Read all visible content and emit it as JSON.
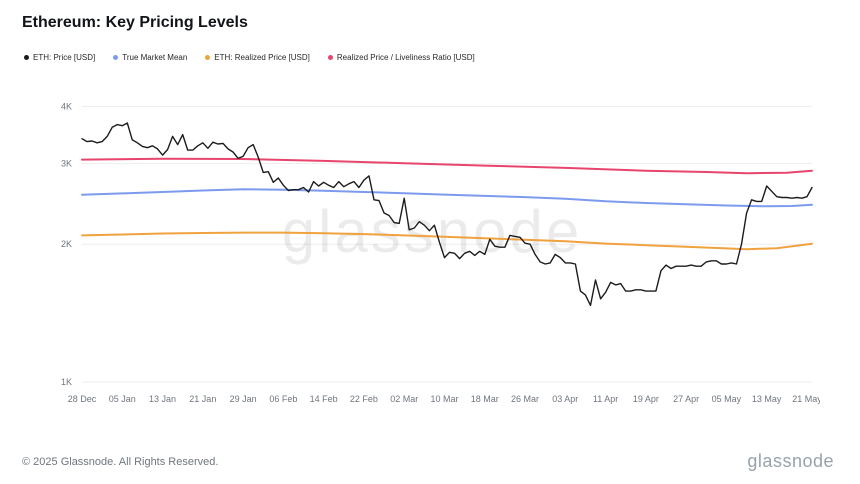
{
  "header": {
    "title": "Ethereum: Key Pricing Levels"
  },
  "legend": {
    "items": [
      {
        "label": "ETH: Price [USD]",
        "color": "#1c1c1c"
      },
      {
        "label": "True Market Mean",
        "color": "#7c9bee"
      },
      {
        "label": "ETH: Realized Price [USD]",
        "color": "#f0a23e"
      },
      {
        "label": "Realized Price / Liveliness Ratio [USD]",
        "color": "#e8456d"
      }
    ]
  },
  "chart_data": {
    "type": "line",
    "title": "Ethereum: Key Pricing Levels",
    "y_scale": "log",
    "x_unit": "days since 28 Dec",
    "x_range": [
      0,
      145
    ],
    "y_range": [
      1000,
      4300
    ],
    "grid": "horizontal-only",
    "legend_position": "top-left",
    "watermark": "glassnode",
    "y_ticks": [
      {
        "label": "4K",
        "value": 4000
      },
      {
        "label": "3K",
        "value": 3000
      },
      {
        "label": "2K",
        "value": 2000
      },
      {
        "label": "1K",
        "value": 1000
      }
    ],
    "x_tick_days": [
      0,
      8,
      16,
      24,
      32,
      40,
      48,
      56,
      64,
      72,
      80,
      88,
      96,
      104,
      112,
      120,
      128,
      136,
      144
    ],
    "x_tick_labels": [
      "28 Dec",
      "05 Jan",
      "13 Jan",
      "21 Jan",
      "29 Jan",
      "06 Feb",
      "14 Feb",
      "22 Feb",
      "02 Mar",
      "10 Mar",
      "18 Mar",
      "26 Mar",
      "03 Apr",
      "11 Apr",
      "19 Apr",
      "27 Apr",
      "05 May",
      "13 May",
      "21 May"
    ],
    "series": [
      {
        "name": "ETH: Price [USD]",
        "color": "#1c1c1c",
        "width": 1.4,
        "values": [
          3400,
          3350,
          3360,
          3330,
          3350,
          3440,
          3600,
          3650,
          3630,
          3680,
          3380,
          3330,
          3270,
          3250,
          3280,
          3230,
          3130,
          3220,
          3440,
          3300,
          3470,
          3210,
          3210,
          3280,
          3330,
          3240,
          3340,
          3310,
          3320,
          3230,
          3180,
          3080,
          3110,
          3250,
          3300,
          3100,
          2870,
          2880,
          2730,
          2790,
          2690,
          2620,
          2630,
          2630,
          2660,
          2600,
          2740,
          2680,
          2730,
          2690,
          2660,
          2740,
          2670,
          2710,
          2740,
          2660,
          2760,
          2820,
          2500,
          2490,
          2340,
          2310,
          2230,
          2220,
          2520,
          2150,
          2170,
          2240,
          2200,
          2140,
          2200,
          2020,
          1870,
          1920,
          1910,
          1860,
          1910,
          1930,
          1890,
          1930,
          1900,
          2050,
          1980,
          1970,
          1970,
          2090,
          2080,
          2070,
          2010,
          2000,
          1900,
          1830,
          1810,
          1820,
          1900,
          1870,
          1820,
          1820,
          1810,
          1580,
          1550,
          1470,
          1670,
          1520,
          1570,
          1650,
          1630,
          1640,
          1580,
          1580,
          1590,
          1590,
          1580,
          1580,
          1580,
          1750,
          1800,
          1770,
          1790,
          1790,
          1790,
          1800,
          1790,
          1790,
          1830,
          1840,
          1840,
          1810,
          1810,
          1820,
          1810,
          2000,
          2340,
          2500,
          2480,
          2480,
          2680,
          2610,
          2540,
          2530,
          2530,
          2520,
          2530,
          2520,
          2540,
          2660
        ]
      },
      {
        "name": "True Market Mean",
        "color": "#7c9bee",
        "width": 2,
        "points": [
          [
            0,
            2565
          ],
          [
            8,
            2582
          ],
          [
            16,
            2600
          ],
          [
            24,
            2620
          ],
          [
            32,
            2636
          ],
          [
            40,
            2630
          ],
          [
            48,
            2616
          ],
          [
            56,
            2600
          ],
          [
            64,
            2585
          ],
          [
            72,
            2566
          ],
          [
            80,
            2550
          ],
          [
            88,
            2534
          ],
          [
            96,
            2514
          ],
          [
            104,
            2482
          ],
          [
            112,
            2460
          ],
          [
            120,
            2445
          ],
          [
            128,
            2430
          ],
          [
            136,
            2420
          ],
          [
            141,
            2424
          ],
          [
            145,
            2440
          ]
        ]
      },
      {
        "name": "ETH: Realized Price [USD]",
        "color": "#f0a23e",
        "width": 2,
        "points": [
          [
            0,
            2090
          ],
          [
            8,
            2100
          ],
          [
            16,
            2110
          ],
          [
            24,
            2116
          ],
          [
            32,
            2120
          ],
          [
            40,
            2120
          ],
          [
            48,
            2114
          ],
          [
            56,
            2104
          ],
          [
            64,
            2090
          ],
          [
            72,
            2076
          ],
          [
            80,
            2060
          ],
          [
            88,
            2046
          ],
          [
            96,
            2030
          ],
          [
            104,
            2006
          ],
          [
            112,
            1990
          ],
          [
            120,
            1974
          ],
          [
            128,
            1958
          ],
          [
            132,
            1950
          ],
          [
            138,
            1960
          ],
          [
            145,
            2005
          ]
        ]
      },
      {
        "name": "Realized Price / Liveliness Ratio [USD]",
        "color": "#e8456d",
        "width": 2,
        "points": [
          [
            0,
            3060
          ],
          [
            16,
            3075
          ],
          [
            32,
            3070
          ],
          [
            48,
            3040
          ],
          [
            64,
            3005
          ],
          [
            80,
            2970
          ],
          [
            96,
            2935
          ],
          [
            112,
            2895
          ],
          [
            124,
            2875
          ],
          [
            132,
            2858
          ],
          [
            140,
            2865
          ],
          [
            145,
            2895
          ]
        ]
      }
    ]
  },
  "footer": {
    "copyright": "© 2025 Glassnode. All Rights Reserved.",
    "logo": "glassnode"
  }
}
